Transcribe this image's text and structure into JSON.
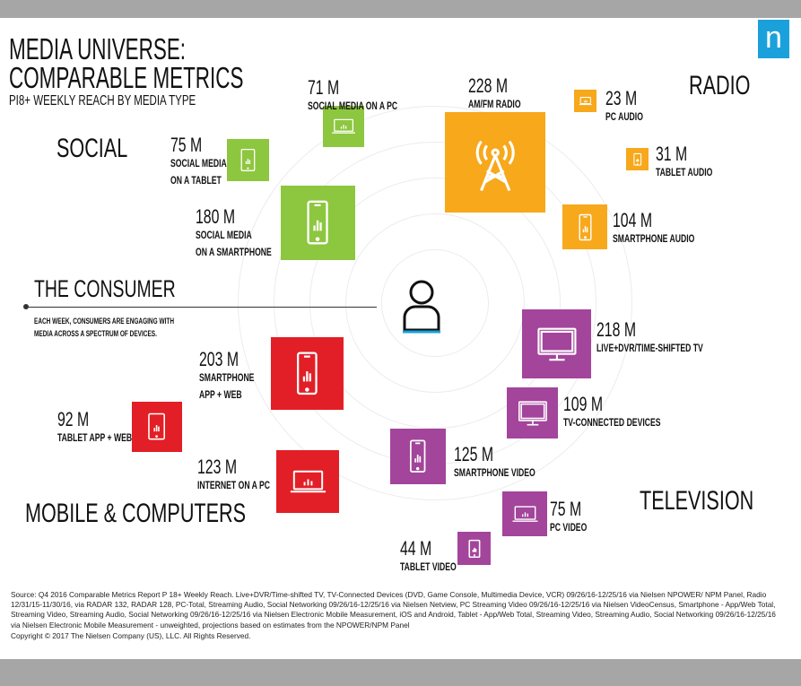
{
  "title": {
    "line1": "MEDIA UNIVERSE:",
    "line2": "COMPARABLE METRICS",
    "subtitle": "PI8+ WEEKLY REACH BY MEDIA TYPE"
  },
  "logo": {
    "letter": "n",
    "color": "#1aa1db"
  },
  "colors": {
    "social": "#8dc63f",
    "radio": "#f7a81b",
    "tv": "#a3459b",
    "mobile": "#e21f26"
  },
  "categories": {
    "social": "SOCIAL",
    "radio": "RADIO",
    "tv": "TELEVISION",
    "mobile": "MOBILE & COMPUTERS"
  },
  "consumer": {
    "heading": "THE CONSUMER",
    "desc1": "EACH WEEK, CONSUMERS ARE ENGAGING WITH",
    "desc2": "MEDIA ACROSS A SPECTRUM OF DEVICES.",
    "icon": "person-icon"
  },
  "items": [
    {
      "value": "71 M",
      "l1": "SOCIAL MEDIA ON A PC",
      "l2": "",
      "icon": "laptop"
    },
    {
      "value": "75 M",
      "l1": "SOCIAL MEDIA",
      "l2": "ON A TABLET",
      "icon": "tablet"
    },
    {
      "value": "180 M",
      "l1": "SOCIAL MEDIA",
      "l2": "ON A SMARTPHONE",
      "icon": "phone"
    },
    {
      "value": "228 M",
      "l1": "AM/FM RADIO",
      "l2": "",
      "icon": "tower"
    },
    {
      "value": "23 M",
      "l1": "PC AUDIO",
      "l2": "",
      "icon": "laptop"
    },
    {
      "value": "31 M",
      "l1": "TABLET AUDIO",
      "l2": "",
      "icon": "tablet"
    },
    {
      "value": "104 M",
      "l1": "SMARTPHONE AUDIO",
      "l2": "",
      "icon": "phone"
    },
    {
      "value": "218 M",
      "l1": "LIVE+DVR/TIME-SHIFTED TV",
      "l2": "",
      "icon": "tv"
    },
    {
      "value": "109 M",
      "l1": "TV-CONNECTED DEVICES",
      "l2": "",
      "icon": "tv"
    },
    {
      "value": "125 M",
      "l1": "SMARTPHONE VIDEO",
      "l2": "",
      "icon": "phone"
    },
    {
      "value": "75 M",
      "l1": "PC VIDEO",
      "l2": "",
      "icon": "laptop"
    },
    {
      "value": "44 M",
      "l1": "TABLET VIDEO",
      "l2": "",
      "icon": "tablet"
    },
    {
      "value": "203 M",
      "l1": "SMARTPHONE",
      "l2": "APP + WEB",
      "icon": "phone"
    },
    {
      "value": "92 M",
      "l1": "TABLET APP + WEB",
      "l2": "",
      "icon": "tablet"
    },
    {
      "value": "123 M",
      "l1": "INTERNET ON A PC",
      "l2": "",
      "icon": "laptop"
    }
  ],
  "footer": {
    "source": "Source: Q4 2016 Comparable Metrics Report P 18+ Weekly Reach. Live+DVR/Time-shifted TV, TV-Connected Devices (DVD, Game Console, Multimedia Device, VCR) 09/26/16-12/25/16 via Nielsen NPOWER/ NPM Panel, Radio 12/31/15-11/30/16, via RADAR 132, RADAR 128, PC-Total, Streaming Audio, Social Networking 09/26/16-12/25/16 via Nielsen Netview, PC Streaming Video 09/26/16-12/25/16 via Nielsen VideoCensus, Smartphone - App/Web Total, Streaming Video, Streaming Audio, Social Networking 09/26/16-12/25/16 via Nielsen Electronic Mobile Measurement, iOS and Android, Tablet - App/Web Total, Streaming Video, Streaming Audio, Social Networking 09/26/16-12/25/16 via Nielsen Electronic Mobile Measurement - unweighted, projections based on estimates from the NPOWER/NPM Panel",
    "copyright": "Copyright © 2017 The Nielsen Company (US), LLC. All Rights Reserved."
  }
}
